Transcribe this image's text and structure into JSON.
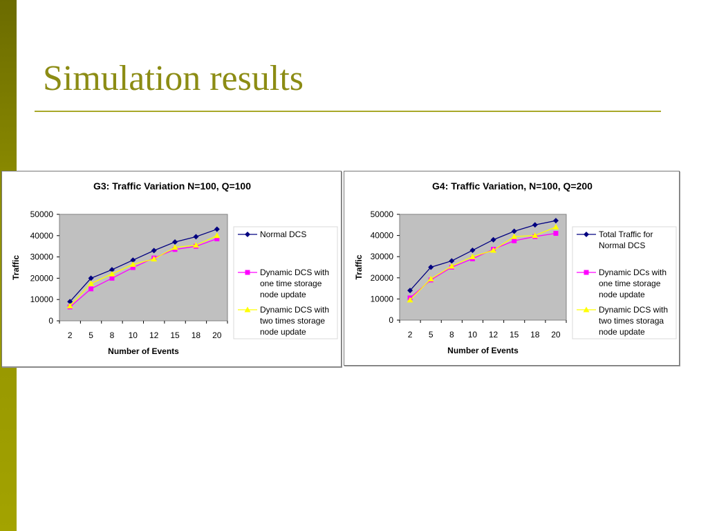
{
  "slide": {
    "title": "Simulation results",
    "colors": {
      "sidebar": "#8f8f00",
      "title": "#8c8c14",
      "rule": "#a8a828"
    }
  },
  "chart_data": [
    {
      "type": "line",
      "title": "G3: Traffic Variation N=100, Q=100",
      "xlabel": "Number of Events",
      "ylabel": "Traffic",
      "categories": [
        "2",
        "5",
        "8",
        "10",
        "12",
        "15",
        "18",
        "20"
      ],
      "ylim": [
        0,
        50000
      ],
      "yticks": [
        0,
        10000,
        20000,
        30000,
        40000,
        50000
      ],
      "grid": false,
      "plot_background": "#c0c0c0",
      "legend_position": "right",
      "series": [
        {
          "name": "Normal DCS",
          "legend_lines": [
            "Normal DCS"
          ],
          "color": "#000080",
          "marker": "diamond",
          "values": [
            9000,
            20000,
            24000,
            28500,
            33000,
            37000,
            39500,
            43000
          ]
        },
        {
          "name": "Dynamic DCS with one time storage node update",
          "legend_lines": [
            "Dynamic DCS with",
            "one time storage",
            "node update"
          ],
          "color": "#ff00ff",
          "marker": "square",
          "values": [
            6500,
            15000,
            20000,
            25000,
            29500,
            33500,
            35000,
            38500
          ]
        },
        {
          "name": "Dynamic DCS with two times storage node update",
          "legend_lines": [
            "Dynamic DCS with",
            "two times storage",
            "node update"
          ],
          "color": "#ffff00",
          "marker": "triangle",
          "values": [
            7000,
            17500,
            22000,
            26500,
            29000,
            34500,
            35500,
            40000
          ]
        }
      ]
    },
    {
      "type": "line",
      "title": "G4: Traffic Variation, N=100, Q=200",
      "xlabel": "Number of Events",
      "ylabel": "Traffic",
      "categories": [
        "2",
        "5",
        "8",
        "10",
        "12",
        "15",
        "18",
        "20"
      ],
      "ylim": [
        0,
        50000
      ],
      "yticks": [
        0,
        10000,
        20000,
        30000,
        40000,
        50000
      ],
      "grid": false,
      "plot_background": "#c0c0c0",
      "legend_position": "right",
      "series": [
        {
          "name": "Total Traffic for Normal DCS",
          "legend_lines": [
            "Total Traffic for",
            "Normal DCS"
          ],
          "color": "#000080",
          "marker": "diamond",
          "values": [
            14000,
            25000,
            28000,
            33000,
            38000,
            42000,
            45000,
            47000
          ]
        },
        {
          "name": "Dynamic DCs with one time storage node update",
          "legend_lines": [
            "Dynamic DCs with",
            "one time storage",
            "node update"
          ],
          "color": "#ff00ff",
          "marker": "square",
          "values": [
            10500,
            19000,
            25000,
            29000,
            33500,
            37500,
            39500,
            41000
          ]
        },
        {
          "name": "Dynamic DCS with two times storaga node update",
          "legend_lines": [
            "Dynamic DCS with",
            "two times storaga",
            "node update"
          ],
          "color": "#ffff00",
          "marker": "triangle",
          "values": [
            9500,
            19500,
            25500,
            30000,
            33000,
            39500,
            40000,
            44000
          ]
        }
      ]
    }
  ]
}
